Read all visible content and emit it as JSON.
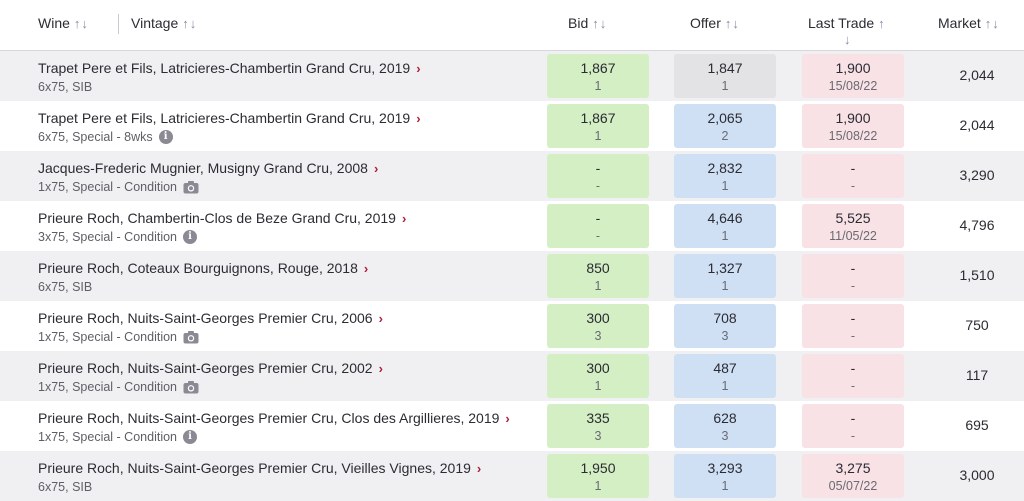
{
  "header": {
    "wine": "Wine",
    "vintage": "Vintage",
    "bid": "Bid",
    "offer": "Offer",
    "last_trade": "Last Trade",
    "market": "Market",
    "sort_arrows": "↑↓",
    "up_arrow": "↑",
    "down_arrow": "↓"
  },
  "rows": [
    {
      "wine": "Trapet Pere et Fils, Latricieres-Chambertin Grand Cru, 2019",
      "size": "6x75,",
      "status": "SIB",
      "bid": "1,867",
      "bid_count": "1",
      "offer": "1,847",
      "offer_count": "1",
      "trade": "1,900",
      "trade_date": "15/08/22",
      "market": "2,044"
    },
    {
      "wine": "Trapet Pere et Fils, Latricieres-Chambertin Grand Cru, 2019",
      "size": "6x75,",
      "status": "Special - 8wks",
      "bid": "1,867",
      "bid_count": "1",
      "offer": "2,065",
      "offer_count": "2",
      "trade": "1,900",
      "trade_date": "15/08/22",
      "market": "2,044"
    },
    {
      "wine": "Jacques-Frederic Mugnier, Musigny Grand Cru, 2008",
      "size": "1x75,",
      "status": "Special - Condition",
      "bid": "-",
      "bid_count": "-",
      "offer": "2,832",
      "offer_count": "1",
      "trade": "-",
      "trade_date": "-",
      "market": "3,290"
    },
    {
      "wine": "Prieure Roch, Chambertin-Clos de Beze Grand Cru, 2019",
      "size": "3x75,",
      "status": "Special - Condition",
      "bid": "-",
      "bid_count": "-",
      "offer": "4,646",
      "offer_count": "1",
      "trade": "5,525",
      "trade_date": "11/05/22",
      "market": "4,796"
    },
    {
      "wine": "Prieure Roch, Coteaux Bourguignons, Rouge, 2018",
      "size": "6x75,",
      "status": "SIB",
      "bid": "850",
      "bid_count": "1",
      "offer": "1,327",
      "offer_count": "1",
      "trade": "-",
      "trade_date": "-",
      "market": "1,510"
    },
    {
      "wine": "Prieure Roch, Nuits-Saint-Georges Premier Cru, 2006",
      "size": "1x75,",
      "status": "Special - Condition",
      "bid": "300",
      "bid_count": "3",
      "offer": "708",
      "offer_count": "3",
      "trade": "-",
      "trade_date": "-",
      "market": "750"
    },
    {
      "wine": "Prieure Roch, Nuits-Saint-Georges Premier Cru, 2002",
      "size": "1x75,",
      "status": "Special - Condition",
      "bid": "300",
      "bid_count": "1",
      "offer": "487",
      "offer_count": "1",
      "trade": "-",
      "trade_date": "-",
      "market": "117"
    },
    {
      "wine": "Prieure Roch, Nuits-Saint-Georges Premier Cru, Clos des Argillieres, 2019",
      "size": "1x75,",
      "status": "Special - Condition",
      "bid": "335",
      "bid_count": "3",
      "offer": "628",
      "offer_count": "3",
      "trade": "-",
      "trade_date": "-",
      "market": "695"
    },
    {
      "wine": "Prieure Roch, Nuits-Saint-Georges Premier Cru, Vieilles Vignes, 2019",
      "size": "6x75,",
      "status": "SIB",
      "bid": "1,950",
      "bid_count": "1",
      "offer": "3,293",
      "offer_count": "1",
      "trade": "3,275",
      "trade_date": "05/07/22",
      "market": "3,000"
    }
  ],
  "icons": {
    "row_chevron": "chevron-right-icon",
    "status_info": "info-icon",
    "status_photo": "camera-icon",
    "sort": "sort-arrows-icon"
  },
  "colors": {
    "bid_bg": "#d4efc4",
    "offer_bg": "#cfe0f5",
    "offer_own_bg": "#e3e3e5",
    "trade_bg": "#f8e2e6",
    "chevron": "#b01e3c"
  }
}
